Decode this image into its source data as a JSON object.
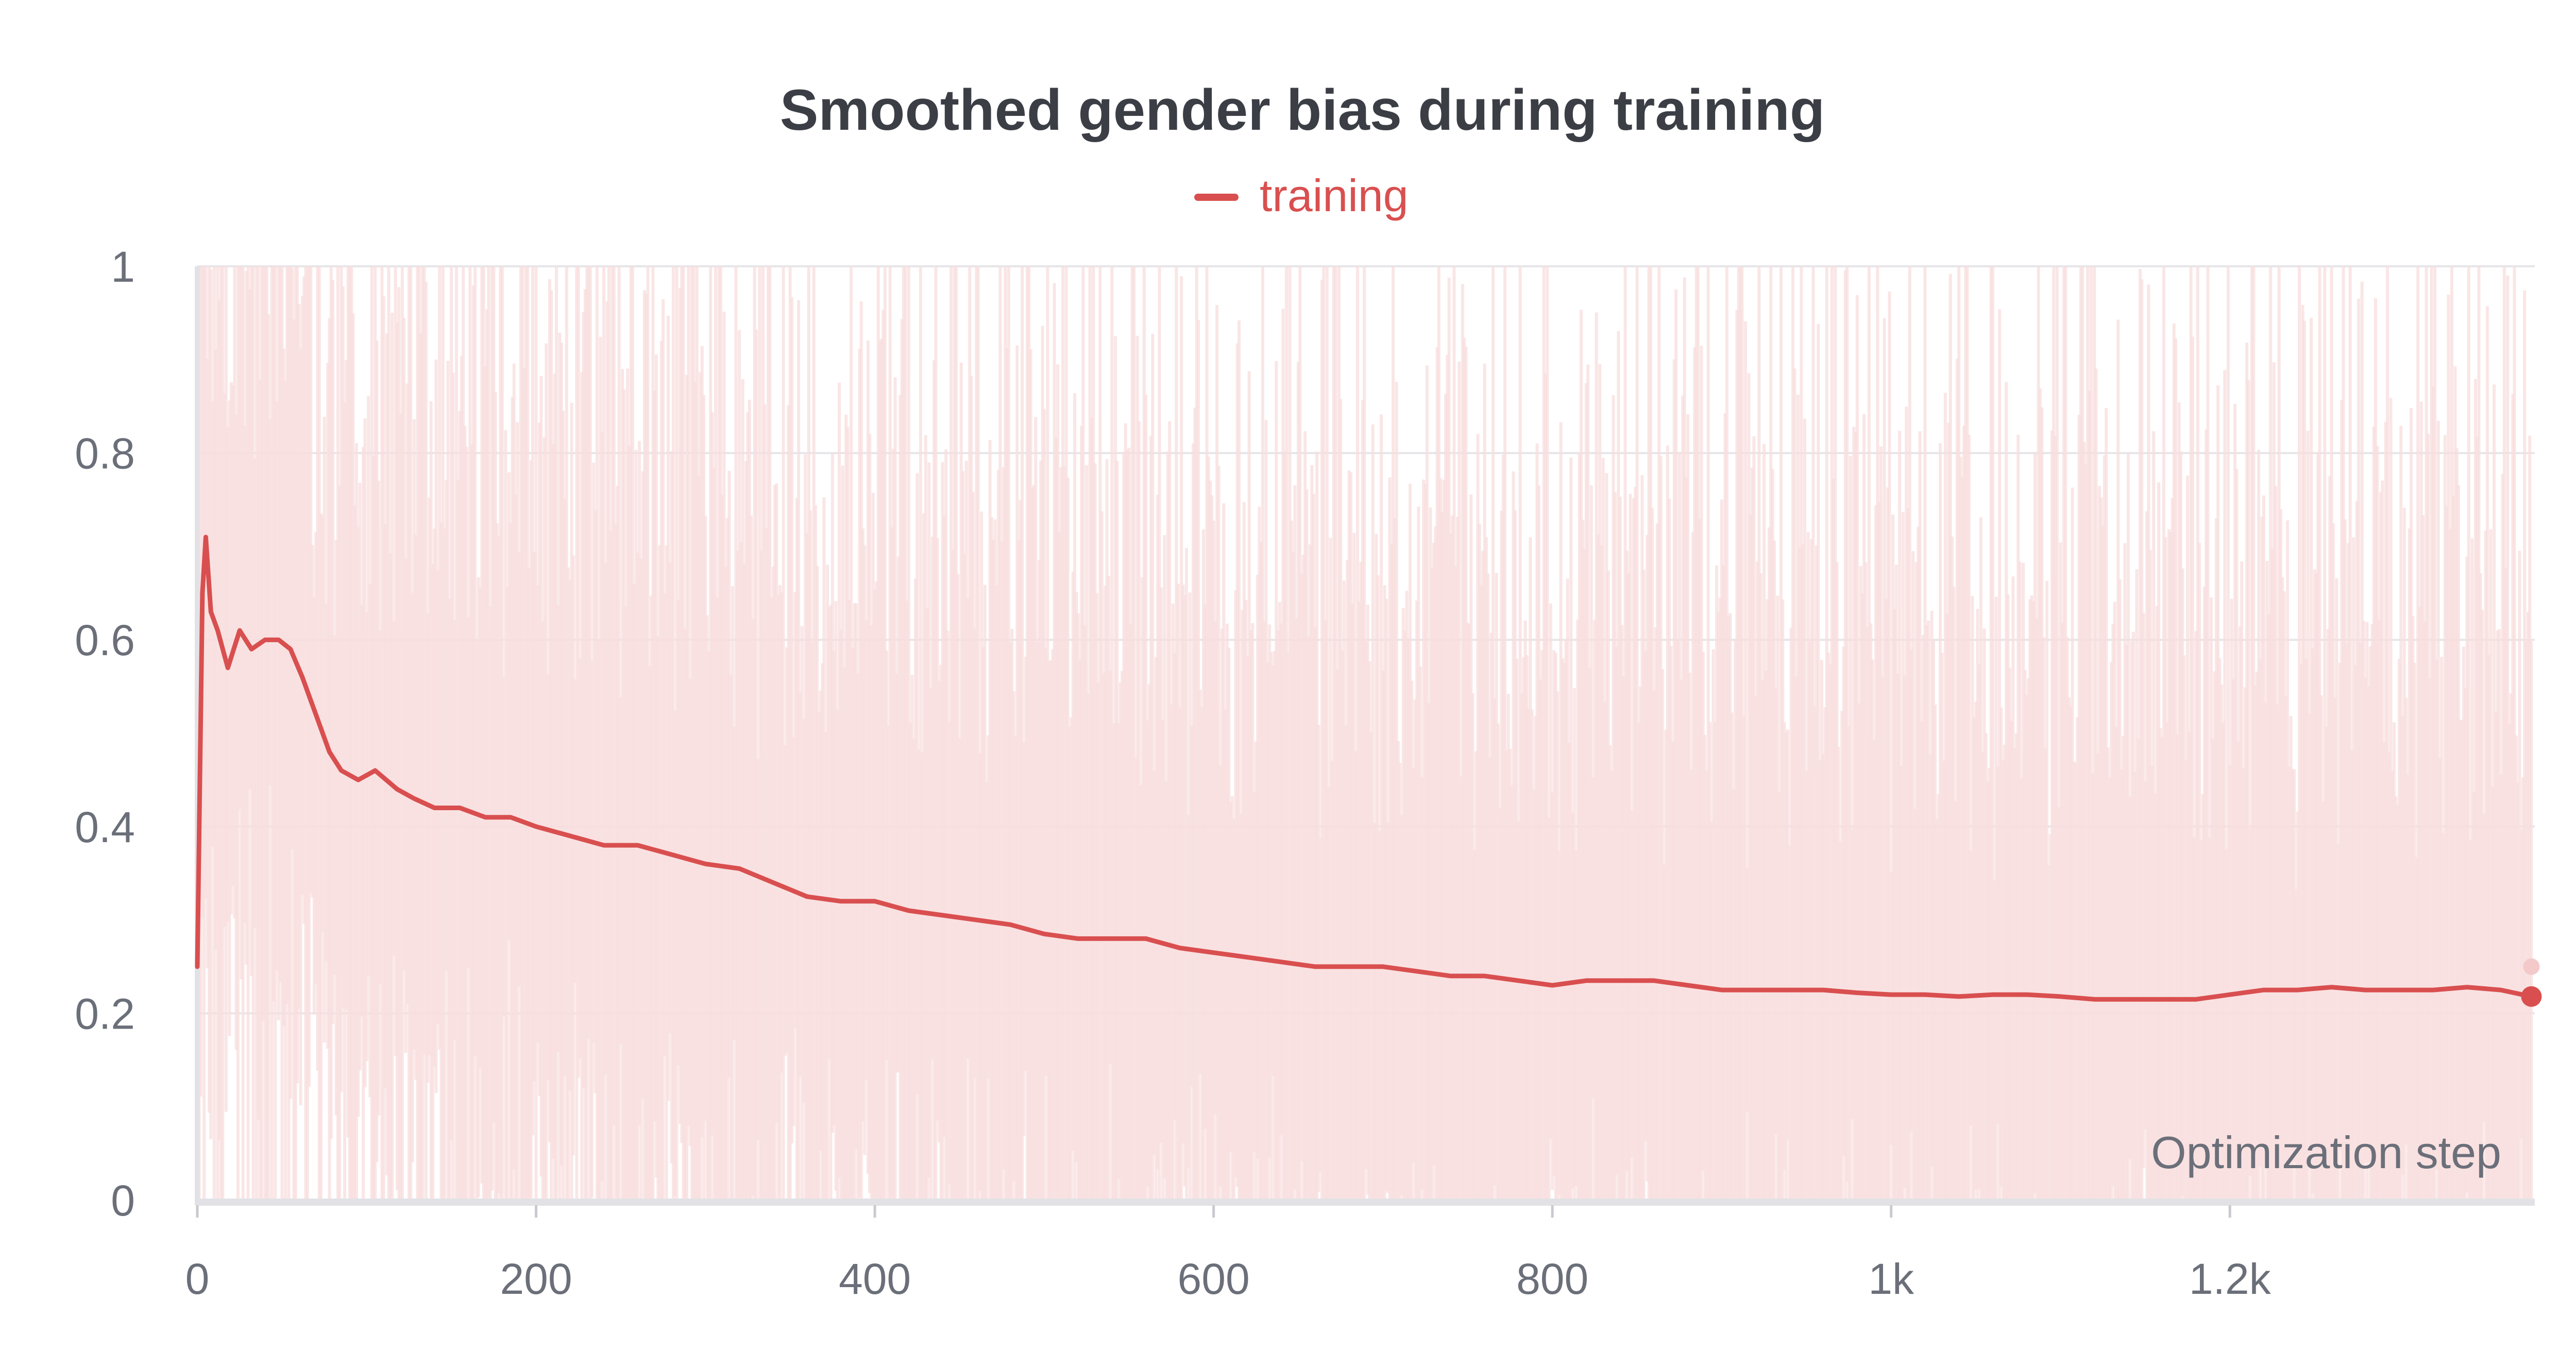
{
  "chart_data": {
    "type": "line",
    "title": "Smoothed gender bias during training",
    "xlabel": "Optimization step",
    "ylabel": "",
    "xlim": [
      0,
      1380
    ],
    "ylim": [
      0,
      1
    ],
    "x_ticks": [
      {
        "value": 0,
        "label": "0"
      },
      {
        "value": 200,
        "label": "200"
      },
      {
        "value": 400,
        "label": "400"
      },
      {
        "value": 600,
        "label": "600"
      },
      {
        "value": 800,
        "label": "800"
      },
      {
        "value": 1000,
        "label": "1k"
      },
      {
        "value": 1200,
        "label": "1.2k"
      }
    ],
    "y_ticks": [
      {
        "value": 0,
        "label": "0"
      },
      {
        "value": 0.2,
        "label": "0.2"
      },
      {
        "value": 0.4,
        "label": "0.4"
      },
      {
        "value": 0.6,
        "label": "0.6"
      },
      {
        "value": 0.8,
        "label": "0.8"
      },
      {
        "value": 1,
        "label": "1"
      }
    ],
    "grid": true,
    "legend_position": "top-center",
    "series": [
      {
        "name": "training",
        "color": "#d94f4f",
        "raw_color": "#f8dede",
        "smoothed": {
          "x": [
            0,
            3,
            5,
            8,
            12,
            18,
            25,
            32,
            40,
            48,
            55,
            62,
            70,
            78,
            85,
            95,
            105,
            118,
            128,
            140,
            155,
            170,
            185,
            200,
            220,
            240,
            260,
            280,
            300,
            320,
            340,
            360,
            380,
            400,
            420,
            440,
            460,
            480,
            500,
            520,
            540,
            560,
            580,
            600,
            620,
            640,
            660,
            680,
            700,
            720,
            740,
            760,
            780,
            800,
            820,
            840,
            860,
            880,
            900,
            920,
            940,
            960,
            980,
            1000,
            1020,
            1040,
            1060,
            1080,
            1100,
            1120,
            1140,
            1160,
            1180,
            1200,
            1220,
            1240,
            1260,
            1280,
            1300,
            1320,
            1340,
            1360,
            1378
          ],
          "y": [
            0.25,
            0.65,
            0.71,
            0.63,
            0.61,
            0.57,
            0.61,
            0.59,
            0.6,
            0.6,
            0.59,
            0.56,
            0.52,
            0.48,
            0.46,
            0.45,
            0.46,
            0.44,
            0.43,
            0.42,
            0.42,
            0.41,
            0.41,
            0.4,
            0.39,
            0.38,
            0.38,
            0.37,
            0.36,
            0.355,
            0.34,
            0.325,
            0.32,
            0.32,
            0.31,
            0.305,
            0.3,
            0.295,
            0.285,
            0.28,
            0.28,
            0.28,
            0.27,
            0.265,
            0.26,
            0.255,
            0.25,
            0.25,
            0.25,
            0.245,
            0.24,
            0.24,
            0.235,
            0.23,
            0.235,
            0.235,
            0.235,
            0.23,
            0.225,
            0.225,
            0.225,
            0.225,
            0.222,
            0.22,
            0.22,
            0.218,
            0.22,
            0.22,
            0.218,
            0.215,
            0.215,
            0.215,
            0.215,
            0.22,
            0.225,
            0.225,
            0.228,
            0.225,
            0.225,
            0.225,
            0.228,
            0.225,
            0.218
          ]
        },
        "raw_last": {
          "x": 1378,
          "y": 0.25
        },
        "smoothed_last": {
          "x": 1378,
          "y": 0.218
        }
      }
    ]
  }
}
